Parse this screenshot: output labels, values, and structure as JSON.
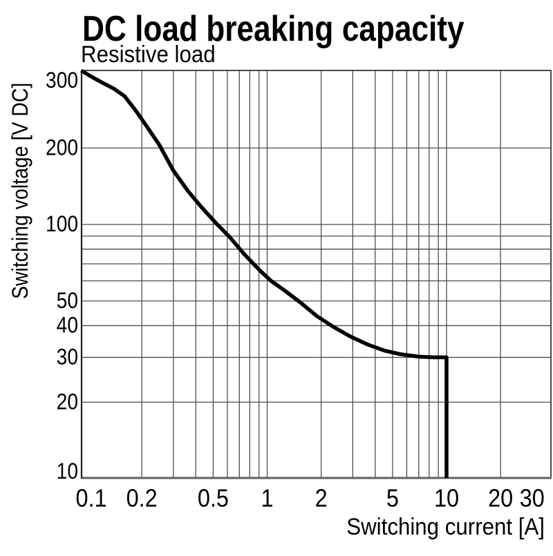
{
  "page": {
    "background": "#ffffff"
  },
  "colors": {
    "background": "#ffffff",
    "text": "#000000",
    "grid": "#4d4d4d",
    "frame": "#474747",
    "axis_left": "#1c1c1c",
    "axis_bottom": "#5f5f5f",
    "curve": "#000000"
  },
  "chart_data": {
    "type": "line",
    "title": "DC load breaking capacity",
    "subtitle": "Resistive load",
    "xlabel": "Switching current [A]",
    "ylabel": "Switching voltage [V DC]",
    "x_scale": "log",
    "y_scale": "log",
    "x_range_displayed": [
      0.09,
      38
    ],
    "y_range_displayed": [
      10,
      400
    ],
    "grid": true,
    "legend": false,
    "x_ticks": [
      {
        "value": 0.1,
        "label": "0.1"
      },
      {
        "value": 0.2,
        "label": "0.2"
      },
      {
        "value": 0.5,
        "label": "0.5"
      },
      {
        "value": 1,
        "label": "1"
      },
      {
        "value": 2,
        "label": "2"
      },
      {
        "value": 5,
        "label": "5"
      },
      {
        "value": 10,
        "label": "10"
      },
      {
        "value": 20,
        "label": "20"
      },
      {
        "value": 30,
        "label": "30"
      }
    ],
    "y_ticks": [
      {
        "value": 300,
        "label": "300"
      },
      {
        "value": 200,
        "label": "200"
      },
      {
        "value": 100,
        "label": "100"
      },
      {
        "value": 50,
        "label": "50"
      },
      {
        "value": 40,
        "label": "40"
      },
      {
        "value": 30,
        "label": "30"
      },
      {
        "value": 20,
        "label": "20"
      },
      {
        "value": 10,
        "label": "10"
      }
    ],
    "x_gridlines": [
      0.2,
      0.3,
      0.4,
      0.5,
      0.6,
      0.7,
      0.8,
      0.9,
      1,
      2,
      3,
      4,
      5,
      6,
      7,
      8,
      9,
      10,
      20
    ],
    "y_gridlines": [
      20,
      30,
      40,
      50,
      60,
      70,
      80,
      90,
      100,
      200
    ],
    "series": [
      {
        "name": "Resistive load",
        "color": "#000000",
        "points": [
          [
            0.092,
            403
          ],
          [
            0.105,
            381
          ],
          [
            0.12,
            362
          ],
          [
            0.14,
            342
          ],
          [
            0.16,
            320
          ],
          [
            0.185,
            281
          ],
          [
            0.215,
            241
          ],
          [
            0.25,
            206
          ],
          [
            0.3,
            163
          ],
          [
            0.36,
            136
          ],
          [
            0.43,
            117
          ],
          [
            0.52,
            101
          ],
          [
            0.62,
            89
          ],
          [
            0.75,
            76
          ],
          [
            0.9,
            66.5
          ],
          [
            1.05,
            60
          ],
          [
            1.25,
            55
          ],
          [
            1.55,
            49
          ],
          [
            1.9,
            43.5
          ],
          [
            2.35,
            39.5
          ],
          [
            2.9,
            36.3
          ],
          [
            3.6,
            33.8
          ],
          [
            4.5,
            31.9
          ],
          [
            5.5,
            30.9
          ],
          [
            7,
            30.2
          ],
          [
            8.5,
            30
          ],
          [
            10,
            30
          ],
          [
            10,
            10
          ]
        ]
      }
    ]
  }
}
